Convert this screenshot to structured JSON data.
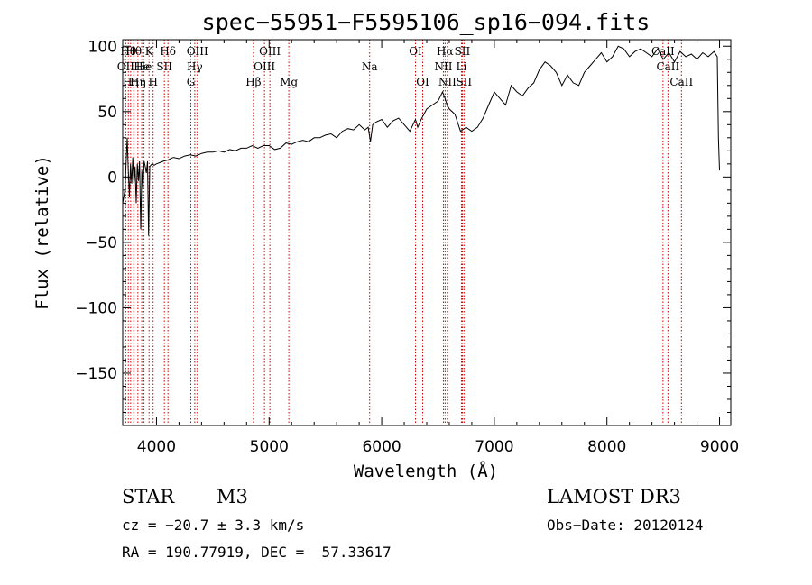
{
  "chart_data": {
    "type": "line",
    "title": "spec−55951−F5595106_sp16−094.fits",
    "xlabel": "Wavelength (Å)",
    "ylabel": "Flux (relative)",
    "xlim": [
      3700,
      9100
    ],
    "ylim": [
      -190,
      105
    ],
    "x_ticks": [
      4000,
      5000,
      6000,
      7000,
      8000,
      9000
    ],
    "y_ticks": [
      {
        "value": 100,
        "label": "100"
      },
      {
        "value": 50,
        "label": "50"
      },
      {
        "value": 0,
        "label": "0"
      },
      {
        "value": -50,
        "label": "−50"
      },
      {
        "value": -100,
        "label": "−100"
      },
      {
        "value": -150,
        "label": "−150"
      }
    ],
    "grid": false,
    "line_color": "#000000",
    "marker_color": "#cc0000",
    "spectrum": {
      "x": [
        3700,
        3720,
        3740,
        3750,
        3760,
        3770,
        3780,
        3790,
        3800,
        3810,
        3820,
        3830,
        3840,
        3850,
        3860,
        3870,
        3880,
        3890,
        3900,
        3910,
        3920,
        3930,
        3940,
        3960,
        3980,
        4000,
        4030,
        4060,
        4100,
        4150,
        4200,
        4250,
        4300,
        4350,
        4400,
        4450,
        4500,
        4550,
        4600,
        4650,
        4700,
        4750,
        4800,
        4850,
        4900,
        4950,
        5000,
        5050,
        5100,
        5150,
        5200,
        5250,
        5300,
        5350,
        5400,
        5450,
        5500,
        5550,
        5600,
        5650,
        5700,
        5750,
        5800,
        5850,
        5880,
        5900,
        5920,
        5950,
        6000,
        6050,
        6100,
        6150,
        6200,
        6250,
        6300,
        6320,
        6350,
        6400,
        6450,
        6500,
        6540,
        6563,
        6580,
        6600,
        6650,
        6700,
        6750,
        6800,
        6850,
        6900,
        6950,
        7000,
        7050,
        7100,
        7150,
        7200,
        7250,
        7300,
        7350,
        7400,
        7450,
        7500,
        7550,
        7600,
        7650,
        7700,
        7750,
        7800,
        7850,
        7900,
        7950,
        8000,
        8050,
        8100,
        8150,
        8200,
        8250,
        8300,
        8350,
        8400,
        8450,
        8500,
        8550,
        8600,
        8650,
        8700,
        8750,
        8800,
        8850,
        8900,
        8950,
        8980,
        8990,
        9000
      ],
      "y": [
        -20,
        -10,
        30,
        5,
        -15,
        10,
        -5,
        15,
        -5,
        8,
        -20,
        10,
        -3,
        12,
        -40,
        5,
        -10,
        12,
        8,
        3,
        12,
        -45,
        8,
        10,
        9,
        10,
        11,
        12,
        13,
        15,
        14,
        16,
        17,
        16,
        18,
        19,
        19,
        20,
        19,
        21,
        20,
        22,
        22,
        24,
        22,
        24,
        24,
        21,
        22,
        26,
        25,
        27,
        28,
        27,
        30,
        30,
        32,
        33,
        30,
        35,
        37,
        36,
        40,
        36,
        38,
        27,
        40,
        42,
        44,
        38,
        43,
        45,
        40,
        35,
        44,
        38,
        44,
        52,
        55,
        58,
        65,
        60,
        55,
        52,
        48,
        35,
        38,
        35,
        38,
        45,
        55,
        65,
        60,
        55,
        70,
        65,
        62,
        68,
        72,
        82,
        88,
        85,
        80,
        70,
        78,
        72,
        70,
        80,
        85,
        90,
        95,
        88,
        92,
        100,
        98,
        92,
        96,
        98,
        95,
        92,
        98,
        90,
        95,
        88,
        96,
        92,
        94,
        90,
        95,
        92,
        96,
        92,
        30,
        5
      ]
    },
    "line_markers": [
      {
        "wavelength": 3727,
        "label": "OII",
        "row": 1
      },
      {
        "wavelength": 3750,
        "label": "Hθ",
        "row": 0
      },
      {
        "wavelength": 3771,
        "label": "Hη",
        "row": 2
      },
      {
        "wavelength": 3798,
        "label": "Hθ",
        "row": 0
      },
      {
        "wavelength": 3835,
        "label": "Hη",
        "row": 2
      },
      {
        "wavelength": 3869,
        "label": "He",
        "row": 1
      },
      {
        "wavelength": 3889,
        "label": "He",
        "row": 1
      },
      {
        "wavelength": 3934,
        "label": "K",
        "row": 0
      },
      {
        "wavelength": 3970,
        "label": "H",
        "row": 2
      },
      {
        "wavelength": 4070,
        "label": "SII",
        "row": 1
      },
      {
        "wavelength": 4102,
        "label": "Hδ",
        "row": 0
      },
      {
        "wavelength": 4305,
        "label": "G",
        "row": 2
      },
      {
        "wavelength": 4340,
        "label": "Hγ",
        "row": 1
      },
      {
        "wavelength": 4363,
        "label": "OIII",
        "row": 0
      },
      {
        "wavelength": 4861,
        "label": "Hβ",
        "row": 2
      },
      {
        "wavelength": 4959,
        "label": "OIII",
        "row": 1
      },
      {
        "wavelength": 5007,
        "label": "OIII",
        "row": 0
      },
      {
        "wavelength": 5175,
        "label": "Mg",
        "row": 2
      },
      {
        "wavelength": 5893,
        "label": "Na",
        "row": 1
      },
      {
        "wavelength": 6300,
        "label": "OI",
        "row": 0
      },
      {
        "wavelength": 6364,
        "label": "OI",
        "row": 2
      },
      {
        "wavelength": 6548,
        "label": "NII",
        "row": 1
      },
      {
        "wavelength": 6563,
        "label": "Hα",
        "row": 0
      },
      {
        "wavelength": 6583,
        "label": "NII",
        "row": 2
      },
      {
        "wavelength": 6708,
        "label": "Li",
        "row": 1
      },
      {
        "wavelength": 6716,
        "label": "SII",
        "row": 0
      },
      {
        "wavelength": 6731,
        "label": "SII",
        "row": 2
      },
      {
        "wavelength": 8498,
        "label": "CaII",
        "row": 0
      },
      {
        "wavelength": 8542,
        "label": "CaII",
        "row": 1
      },
      {
        "wavelength": 8662,
        "label": "CaII",
        "row": 2
      }
    ]
  },
  "info": {
    "class": "STAR",
    "subclass": "M3",
    "survey": "LAMOST DR3",
    "cz": "cz = −20.7 ± 3.3 km/s",
    "obs_date": "Obs−Date: 20120124",
    "coords": "RA = 190.77919, DEC =  57.33617"
  }
}
